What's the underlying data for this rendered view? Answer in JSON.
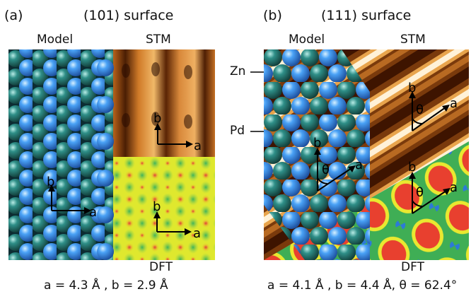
{
  "panel_a": {
    "label": "(a)",
    "title": "(101) surface",
    "model_label": "Model",
    "stm_label": "STM",
    "dft_label": "DFT",
    "lattice_caption": "a = 4.3 Å , b = 2.9 Å",
    "axis_a": "a",
    "axis_b": "b"
  },
  "panel_b": {
    "label": "(b)",
    "title": "(111) surface",
    "model_label": "Model",
    "stm_label": "STM",
    "dft_label": "DFT",
    "lattice_caption": "a = 4.1 Å , b = 4.4 Å, θ = 62.4°",
    "axis_a": "a",
    "axis_b": "b",
    "angle": "θ",
    "zn_label": "Zn",
    "pd_label": "Pd"
  },
  "colors": {
    "zn_atom": "#2d8b84",
    "pd_atom": "#3b88e8",
    "stm_dark": "#4a1e04",
    "stm_bright": "#f3c37a",
    "dft_yellow": "#e3ea2c",
    "dft_green": "#56c05e",
    "dft_red": "#e0413a"
  }
}
